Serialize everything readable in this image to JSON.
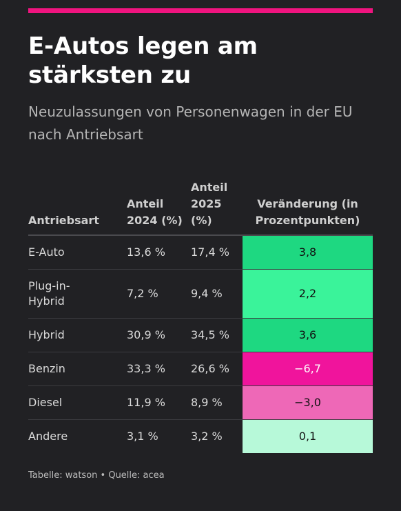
{
  "title": "E-Autos legen am stärksten zu",
  "subtitle": "Neuzulassungen von Personenwagen in der EU nach Antriebsart",
  "source": "Tabelle: watson • Quelle: acea",
  "colors": {
    "accent_bar": "#f0147f",
    "background": "#212124",
    "strong_increase": "#1ed881",
    "increase": "#3af39a",
    "slight_increase": "#b7f9d9",
    "strong_decrease": "#f0149c",
    "decrease": "#ee68b7"
  },
  "chart_data": {
    "type": "table",
    "columns": [
      "Antriebsart",
      "Anteil 2024 (%)",
      "Anteil 2025 (%)",
      "Veränderung (in Prozentpunkten)"
    ],
    "rows": [
      {
        "type": "E-Auto",
        "share_2024": "13,6 %",
        "share_2025": "17,4 %",
        "change": "3,8",
        "change_value": 3.8,
        "color": "#1ed881"
      },
      {
        "type": "Plug-in-Hybrid",
        "share_2024": "7,2 %",
        "share_2025": "9,4 %",
        "change": "2,2",
        "change_value": 2.2,
        "color": "#3af39a"
      },
      {
        "type": "Hybrid",
        "share_2024": "30,9 %",
        "share_2025": "34,5 %",
        "change": "3,6",
        "change_value": 3.6,
        "color": "#1ed881"
      },
      {
        "type": "Benzin",
        "share_2024": "33,3 %",
        "share_2025": "26,6 %",
        "change": "−6,7",
        "change_value": -6.7,
        "color": "#f0149c"
      },
      {
        "type": "Diesel",
        "share_2024": "11,9 %",
        "share_2025": "8,9 %",
        "change": "−3,0",
        "change_value": -3.0,
        "color": "#ee68b7"
      },
      {
        "type": "Andere",
        "share_2024": "3,1 %",
        "share_2025": "3,2 %",
        "change": "0,1",
        "change_value": 0.1,
        "color": "#b7f9d9"
      }
    ]
  }
}
